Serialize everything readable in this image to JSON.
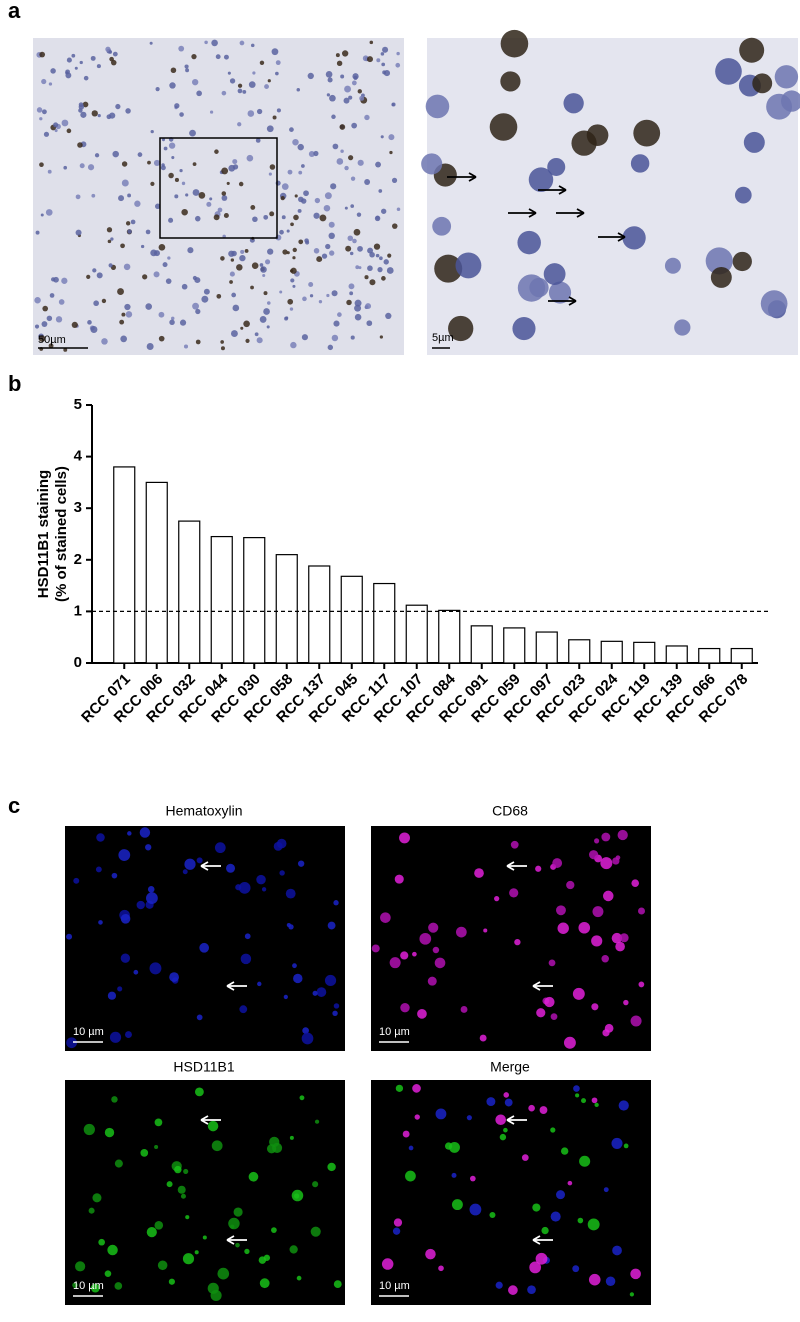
{
  "panel_labels": [
    "a",
    "b",
    "c"
  ],
  "panel_a": {
    "scale_bars": [
      "50µm",
      "5µm"
    ]
  },
  "panel_c": {
    "titles": [
      "Hematoxylin",
      "CD68",
      "HSD11B1",
      "Merge"
    ],
    "scale_bar": "10 µm"
  },
  "chart_data": {
    "type": "bar",
    "ylabel": [
      "HSD11B1 staining",
      "(% of stained cells)"
    ],
    "categories": [
      "RCC 071",
      "RCC 006",
      "RCC 032",
      "RCC 044",
      "RCC 030",
      "RCC 058",
      "RCC 137",
      "RCC 045",
      "RCC 117",
      "RCC 107",
      "RCC 084",
      "RCC 091",
      "RCC 059",
      "RCC 097",
      "RCC 023",
      "RCC 024",
      "RCC 119",
      "RCC 139",
      "RCC 066",
      "RCC 078"
    ],
    "values": [
      3.8,
      3.5,
      2.75,
      2.45,
      2.43,
      2.1,
      1.88,
      1.68,
      1.54,
      1.12,
      1.02,
      0.72,
      0.68,
      0.6,
      0.45,
      0.42,
      0.4,
      0.33,
      0.28,
      0.28
    ],
    "color": "#ffffff",
    "edge_color": "#000000",
    "ylim": [
      0,
      5
    ],
    "yticks": [
      0,
      1,
      2,
      3,
      4,
      5
    ],
    "reference_line": 1
  }
}
